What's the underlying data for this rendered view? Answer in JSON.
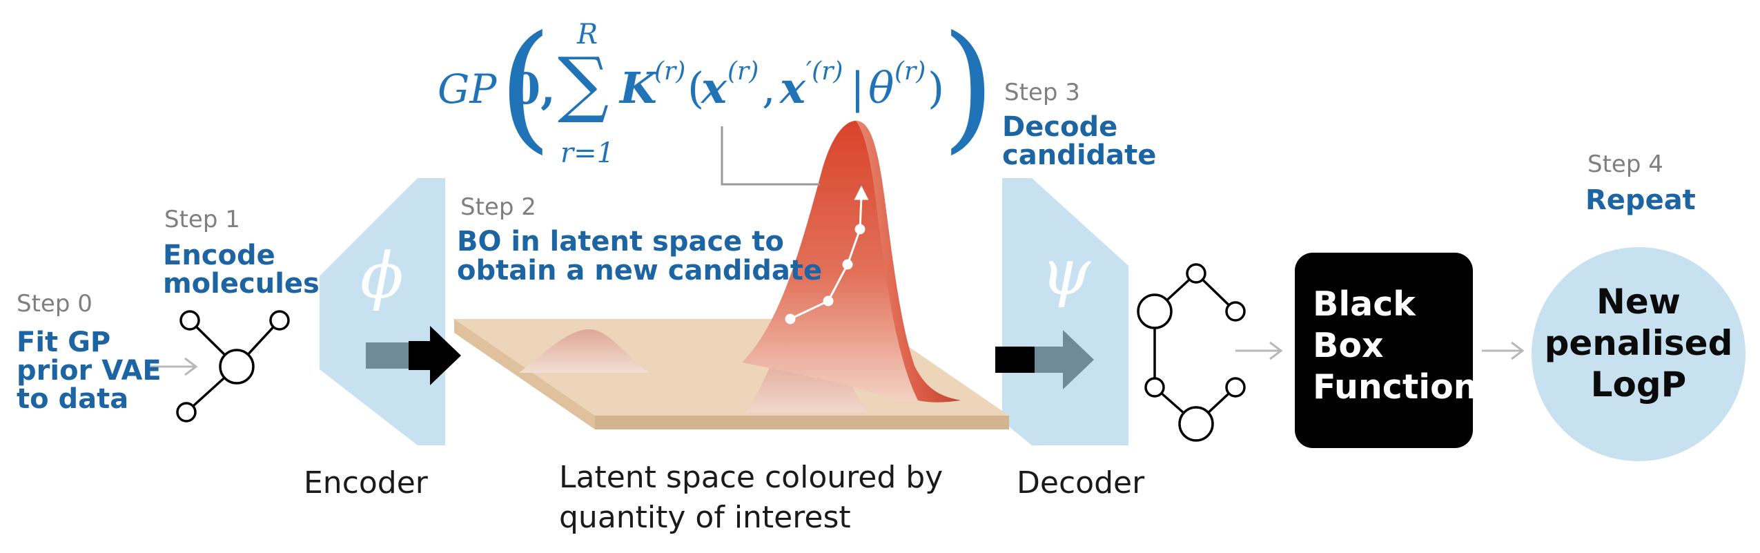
{
  "steps": {
    "step0": {
      "label": "Step 0",
      "desc": [
        "Fit GP",
        "prior VAE",
        "to data"
      ]
    },
    "step1": {
      "label": "Step 1",
      "desc": [
        "Encode",
        "molecules"
      ]
    },
    "step2": {
      "label": "Step 2",
      "desc": [
        "BO in latent space to",
        "obtain a new candidate"
      ]
    },
    "step3": {
      "label": "Step 3",
      "desc": [
        "Decode",
        "candidate"
      ]
    },
    "step4": {
      "label": "Step 4",
      "desc": [
        "Repeat"
      ]
    }
  },
  "encoder": {
    "symbol": "ϕ",
    "caption": "Encoder"
  },
  "decoder": {
    "symbol": "ψ",
    "caption": "Decoder"
  },
  "latent": {
    "caption": [
      "Latent space coloured by",
      "quantity of  interest"
    ]
  },
  "formula": {
    "gp": "GP",
    "zero": "0,",
    "sum_upper": "R",
    "sum_lower": "r=1",
    "kernel": "K",
    "sup_r": "(r)",
    "x": "x",
    "x_prime": "x",
    "prime_sup": "′(r)",
    "theta": "θ"
  },
  "black_box": {
    "lines": [
      "Black",
      "Box",
      "Function"
    ]
  },
  "result": {
    "lines": [
      "New",
      "penalised",
      "LogP"
    ]
  },
  "colors": {
    "accent_blue": "#1c64a2",
    "formula_blue": "#2173b8",
    "step_grey": "#7f7f7f",
    "trapezoid": "#c7e1f0",
    "surface": "#ecd5b8",
    "peak": "#d8472f",
    "black_box": "#000000",
    "result_circle": "#c7e1f0"
  }
}
